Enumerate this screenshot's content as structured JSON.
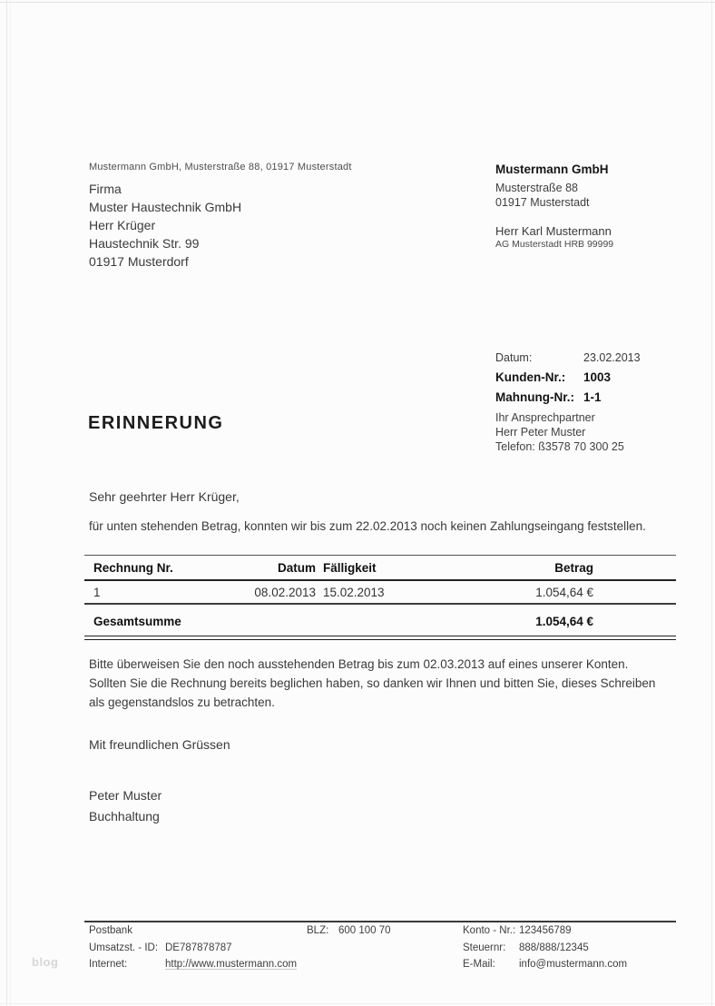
{
  "sender_line": "Mustermann GmbH, Musterstraße 88, 01917 Musterstadt",
  "recipient": {
    "lines": [
      "Firma",
      "Muster Haustechnik GmbH",
      "Herr Krüger",
      "Haustechnik Str. 99",
      "01917 Musterdorf"
    ]
  },
  "company": {
    "name": "Mustermann GmbH",
    "street": "Musterstraße 88",
    "city": "01917 Musterstadt",
    "contact_name": "Herr Karl Mustermann",
    "register": "AG Musterstadt HRB 99999"
  },
  "meta": {
    "date_label": "Datum:",
    "date_value": "23.02.2013",
    "customer_label": "Kunden-Nr.:",
    "customer_value": "1003",
    "reminder_label": "Mahnung-Nr.:",
    "reminder_value": "1-1",
    "contact_intro": "Ihr Ansprechpartner",
    "contact_person": "Herr Peter Muster",
    "contact_phone": "Telefon: ß3578 70 300 25"
  },
  "title": "ERINNERUNG",
  "salutation": "Sehr geehrter Herr Krüger,",
  "intro_paragraph": "für unten stehenden Betrag, konnten wir bis zum 22.02.2013 noch keinen Zahlungseingang feststellen.",
  "invoice_table": {
    "headers": [
      "Rechnung Nr.",
      "Datum",
      "Fälligkeit",
      "Betrag"
    ],
    "rows": [
      [
        "1",
        "08.02.2013",
        "15.02.2013",
        "1.054,64 €"
      ]
    ],
    "total_label": "Gesamtsumme",
    "total_value": "1.054,64 €"
  },
  "outro_paragraph": "Bitte überweisen Sie den noch ausstehenden Betrag bis zum 02.03.2013 auf eines unserer Konten. Sollten Sie die Rechnung bereits beglichen haben, so danken wir Ihnen und bitten Sie, dieses Schreiben als gegenstandslos zu betrachten.",
  "closing": "Mit freundlichen Grüssen",
  "signature": {
    "name": "Peter Muster",
    "department": "Buchhaltung"
  },
  "footer": {
    "bank_name": "Postbank",
    "blz_label": "BLZ:",
    "blz_value": "600 100 70",
    "account_label": "Konto - Nr.:",
    "account_value": "123456789",
    "vat_label": "Umsatzst. - ID:",
    "vat_value": "DE787878787",
    "tax_label": "Steuernr:",
    "tax_value": "888/888/12345",
    "internet_label": "Internet:",
    "internet_value": "http://www.mustermann.com",
    "email_label": "E-Mail:",
    "email_value": "info@mustermann.com"
  },
  "watermark": "blog"
}
